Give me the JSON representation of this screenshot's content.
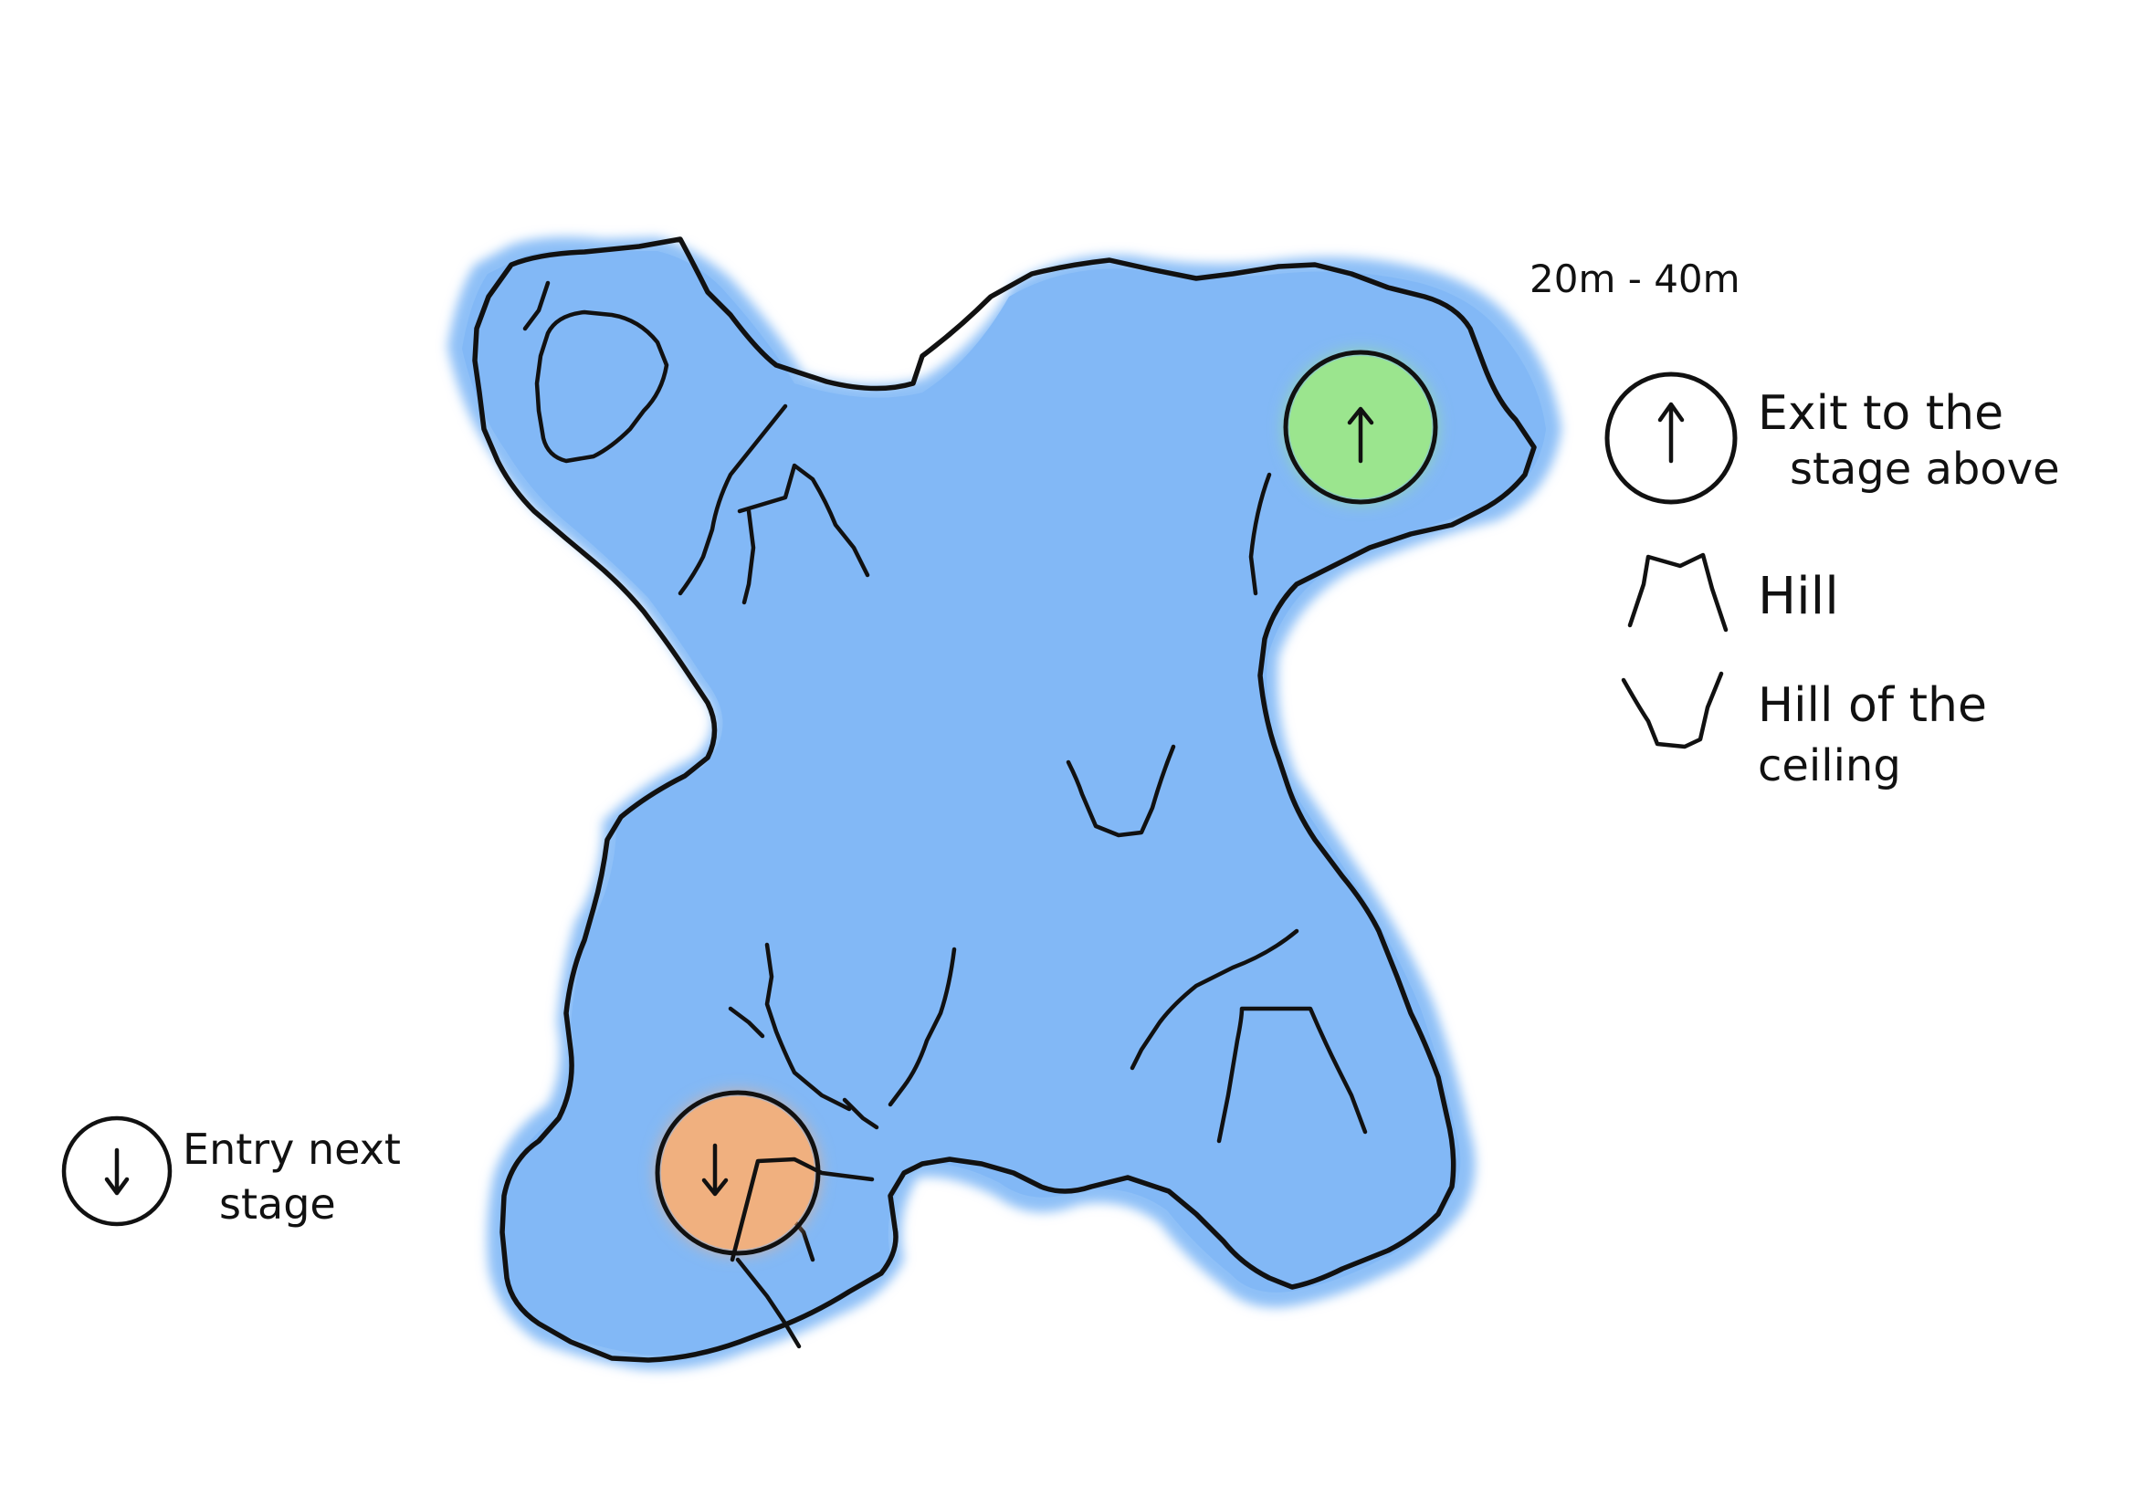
{
  "map": {
    "depth_label": "20m - 40m",
    "colors": {
      "cave_fill": "#82b8f6",
      "cave_halo": "#8ec0f7",
      "exit_marker": "#9be58e",
      "entry_marker": "#f0b07f",
      "ink": "#111111"
    }
  },
  "legend": {
    "exit": {
      "icon": "up-arrow-circle-icon",
      "line1": "Exit to the",
      "line2": "stage above"
    },
    "hill": {
      "icon": "hill-icon",
      "label": "Hill"
    },
    "ceiling_hill": {
      "icon": "ceiling-hill-icon",
      "line1": "Hill of the",
      "line2": "ceiling"
    },
    "entry": {
      "icon": "down-arrow-circle-icon",
      "line1": "Entry next",
      "line2": "stage"
    }
  }
}
